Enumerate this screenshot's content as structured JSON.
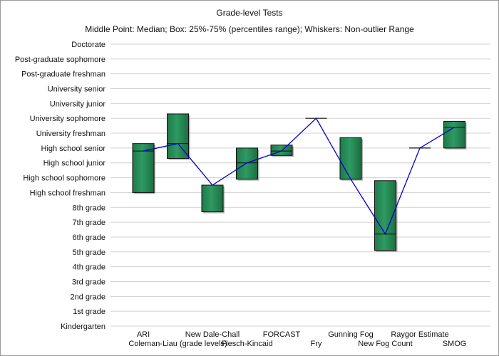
{
  "chart_data": {
    "type": "box",
    "title": "Grade-level Tests",
    "subtitle": "Middle Point: Median; Box: 25%-75% (percentiles range); Whiskers: Non-outlier Range",
    "xlabel": "",
    "ylabel": "",
    "y_categories": [
      "Kindergarten",
      "1st grade",
      "2nd grade",
      "3rd grade",
      "4th grade",
      "5th grade",
      "6th grade",
      "7th grade",
      "8th grade",
      "High school freshman",
      "High school sophomore",
      "High school junior",
      "High school senior",
      "University freshman",
      "University sophomore",
      "University junior",
      "University senior",
      "Post-graduate freshman",
      "Post-graduate sophomore",
      "Doctorate"
    ],
    "grid": true,
    "colors": {
      "box": "#2e9a62",
      "median_line": "#0000cc",
      "grid": "#d0d0d0"
    },
    "categories": [
      "ARI",
      "Coleman-Liau (grade levels)",
      "New Dale-Chall",
      "Flesch-Kincaid",
      "FORCAST",
      "Fry",
      "Gunning Fog",
      "New Fog Count",
      "Raygor Estimate",
      "SMOG"
    ],
    "series": [
      {
        "q1": [
          9.0,
          11.3,
          7.7,
          9.9,
          11.5,
          14.0,
          9.9,
          5.1,
          12.0,
          12.0
        ],
        "median": [
          11.8,
          12.3,
          9.5,
          11.0,
          11.8,
          14.0,
          9.9,
          6.2,
          12.0,
          13.4
        ],
        "q3": [
          12.3,
          14.3,
          9.5,
          12.0,
          12.2,
          14.0,
          12.7,
          9.8,
          12.0,
          13.8
        ]
      }
    ]
  }
}
